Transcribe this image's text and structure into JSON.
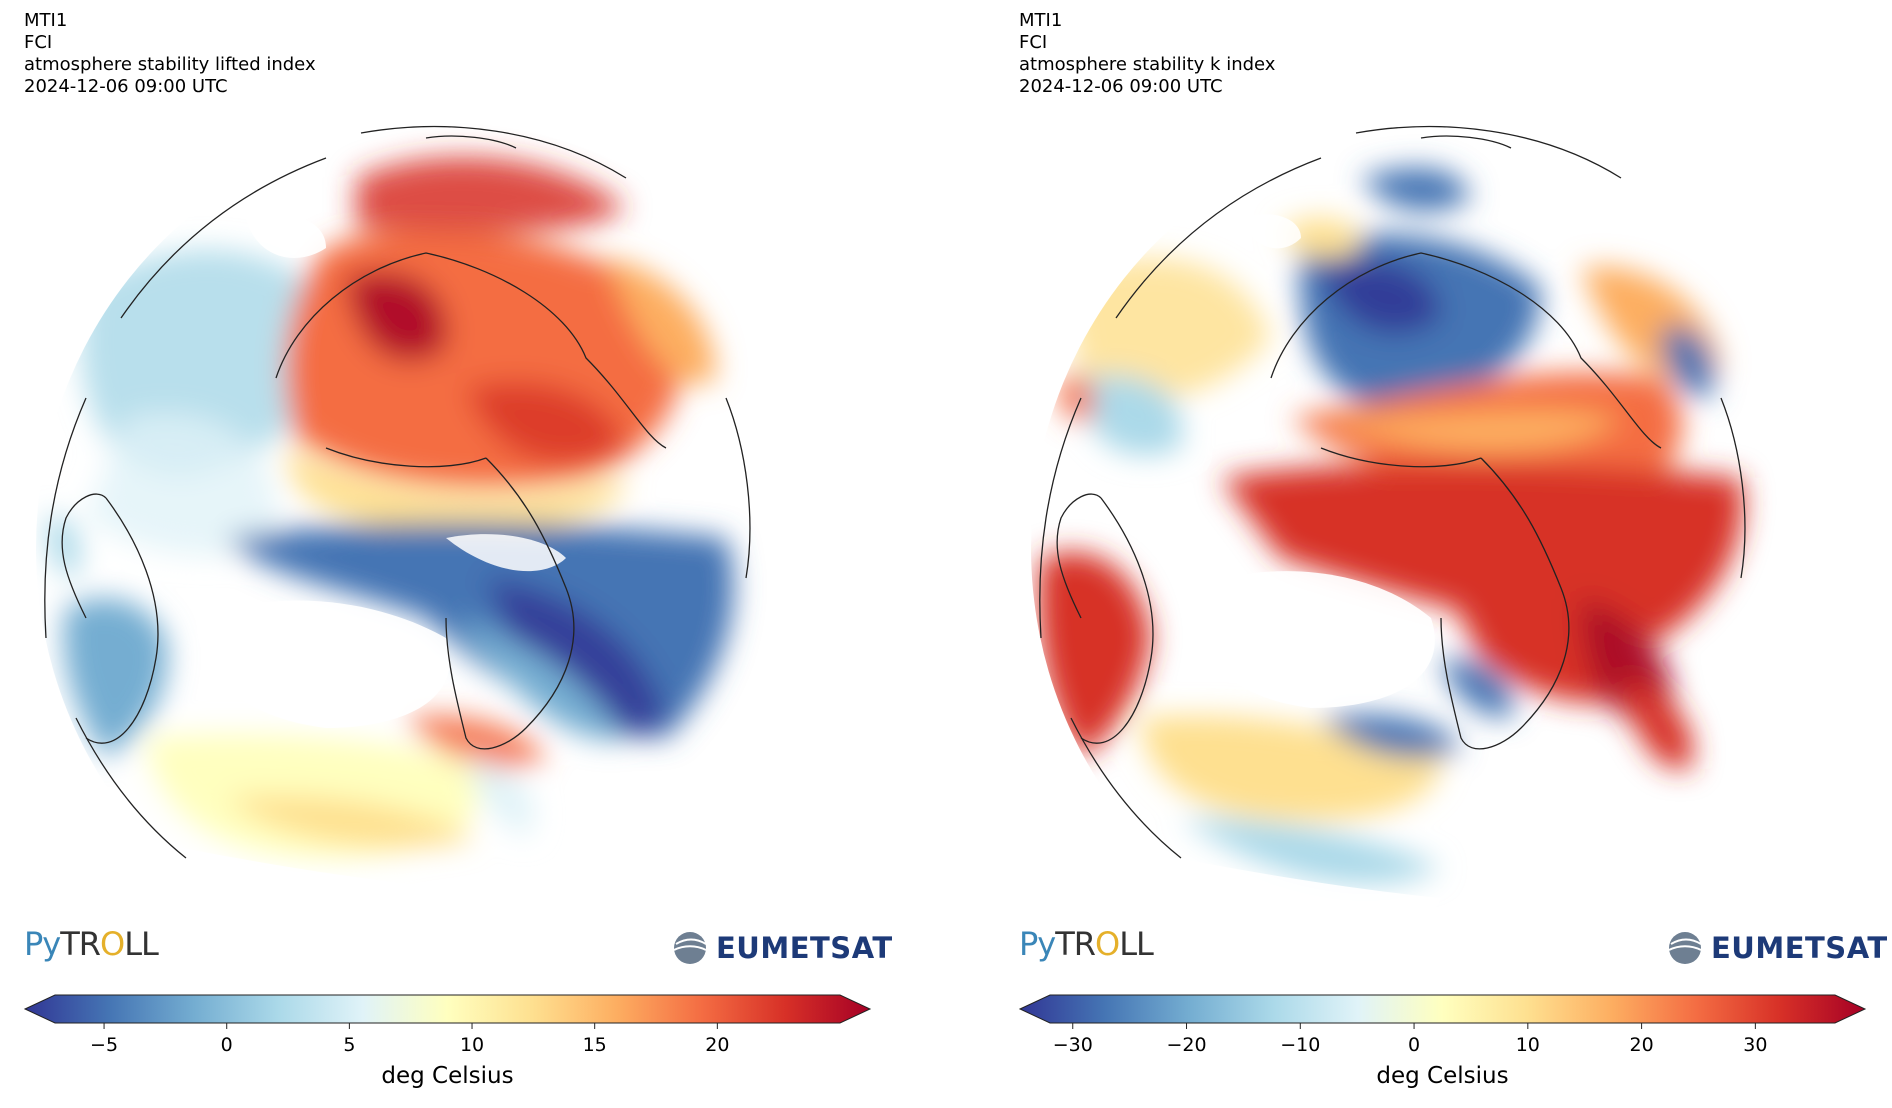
{
  "panels": [
    {
      "header": [
        "MTI1",
        "FCI",
        "atmosphere stability lifted index",
        "2024-12-06 09:00 UTC"
      ],
      "colorbar": {
        "ticks": [
          "−5",
          "0",
          "5",
          "10",
          "15",
          "20"
        ],
        "min": -7,
        "max": 25,
        "tick_values": [
          -5,
          0,
          5,
          10,
          15,
          20
        ],
        "label": "deg Celsius"
      }
    },
    {
      "header": [
        "MTI1",
        "FCI",
        "atmosphere stability k index",
        "2024-12-06 09:00 UTC"
      ],
      "colorbar": {
        "ticks": [
          "−30",
          "−20",
          "−10",
          "0",
          "10",
          "20",
          "30"
        ],
        "min": -32,
        "max": 37,
        "tick_values": [
          -30,
          -20,
          -10,
          0,
          10,
          20,
          30
        ],
        "label": "deg Celsius"
      }
    }
  ],
  "logos": {
    "pytroll": [
      "Py",
      "TR",
      "O",
      "LL"
    ],
    "eumetsat": "EUMETSAT"
  },
  "palette": [
    "#313695",
    "#4575b4",
    "#74add1",
    "#abd9e9",
    "#e0f3f8",
    "#ffffbf",
    "#fee090",
    "#fdae61",
    "#f46d43",
    "#d73027",
    "#a50026"
  ]
}
